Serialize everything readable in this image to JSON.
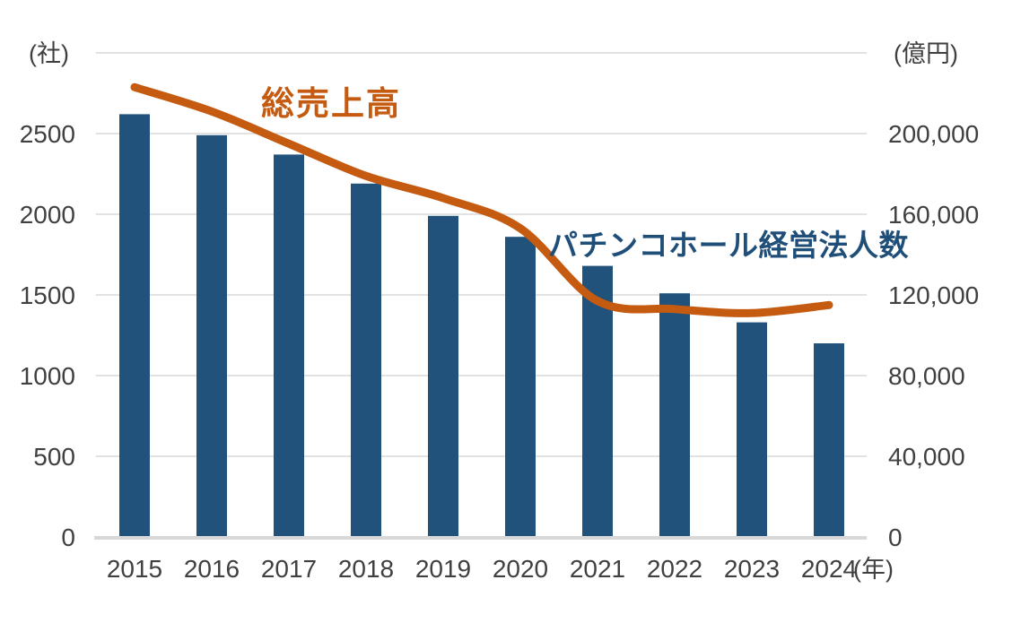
{
  "chart_data": {
    "type": "bar",
    "subtype": "combo-bar-line-dual-axis",
    "categories": [
      "2015",
      "2016",
      "2017",
      "2018",
      "2019",
      "2020",
      "2021",
      "2022",
      "2023",
      "2024"
    ],
    "series": [
      {
        "name": "パチンコホール経営法人数",
        "type": "bar",
        "axis": "left",
        "unit": "社",
        "color": "#21527C",
        "values": [
          2620,
          2490,
          2370,
          2190,
          1990,
          1860,
          1680,
          1510,
          1330,
          1200
        ]
      },
      {
        "name": "総売上高",
        "type": "line",
        "axis": "right",
        "unit": "億円",
        "color": "#C55A11",
        "values": [
          223000,
          211000,
          195000,
          179000,
          168000,
          153000,
          117000,
          113000,
          111000,
          115000
        ]
      }
    ],
    "title": "",
    "xlabel": "(年)",
    "left_axis": {
      "label": "(社)",
      "min": 0,
      "max": 3000,
      "step": 500,
      "ticks": [
        "0",
        "500",
        "1000",
        "1500",
        "2000",
        "2500"
      ]
    },
    "right_axis": {
      "label": "(億円)",
      "min": 0,
      "max": 240000,
      "step": 40000,
      "ticks": [
        "0",
        "40,000",
        "80,000",
        "120,000",
        "160,000",
        "200,000"
      ]
    },
    "grid": true,
    "legend_position": "inline-annotations",
    "line_smooth": true
  },
  "colors": {
    "background": "#FFFFFF",
    "gridline": "#D9D9D9",
    "baseline": "#D8D8D8",
    "tick_text": "#404040",
    "bar_label_text": "#1F4E79",
    "line_label_text": "#C55A11"
  }
}
